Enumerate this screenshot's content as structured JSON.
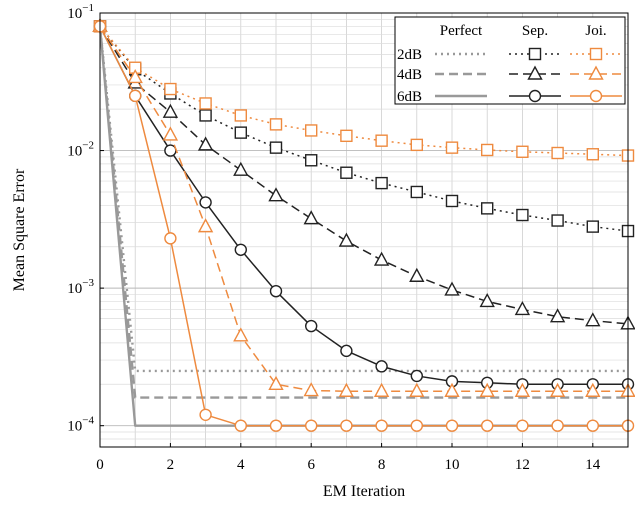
{
  "chart_data": {
    "type": "line",
    "xlabel": "EM Iteration",
    "ylabel": "Mean Square Error",
    "xlim": [
      0,
      15
    ],
    "ylim": [
      7e-05,
      0.1
    ],
    "yscale": "log",
    "xticks": [
      0,
      2,
      4,
      6,
      8,
      10,
      12,
      14
    ],
    "yticks": [
      {
        "value": 0.0001,
        "base": "10",
        "exp": "−4"
      },
      {
        "value": 0.001,
        "base": "10",
        "exp": "−3"
      },
      {
        "value": 0.01,
        "base": "10",
        "exp": "−2"
      },
      {
        "value": 0.1,
        "base": "10",
        "exp": "−1"
      }
    ],
    "grid": true,
    "legend": {
      "placement": "top-right",
      "columns": [
        "Perfect",
        "Sep.",
        "Joi."
      ],
      "rows": [
        "2dB",
        "4dB",
        "6dB"
      ]
    },
    "colors": {
      "perfect": "#999999",
      "separate": "#222222",
      "joint": "#EE8A3F"
    },
    "x": [
      0,
      1,
      2,
      3,
      4,
      5,
      6,
      7,
      8,
      9,
      10,
      11,
      12,
      13,
      14,
      15
    ],
    "series": [
      {
        "group": "Perfect",
        "snr": "2dB",
        "dash": "dotted",
        "marker": "none",
        "values": [
          0.08,
          0.00025,
          0.00025,
          0.00025,
          0.00025,
          0.00025,
          0.00025,
          0.00025,
          0.00025,
          0.00025,
          0.00025,
          0.00025,
          0.00025,
          0.00025,
          0.00025,
          0.00025
        ]
      },
      {
        "group": "Perfect",
        "snr": "4dB",
        "dash": "dashed",
        "marker": "none",
        "values": [
          0.08,
          0.00016,
          0.00016,
          0.00016,
          0.00016,
          0.00016,
          0.00016,
          0.00016,
          0.00016,
          0.00016,
          0.00016,
          0.00016,
          0.00016,
          0.00016,
          0.00016,
          0.00016
        ]
      },
      {
        "group": "Perfect",
        "snr": "6dB",
        "dash": "solid",
        "marker": "none",
        "values": [
          0.08,
          0.0001,
          0.0001,
          0.0001,
          0.0001,
          0.0001,
          0.0001,
          0.0001,
          0.0001,
          0.0001,
          0.0001,
          0.0001,
          0.0001,
          0.0001,
          0.0001,
          0.0001
        ]
      },
      {
        "group": "Sep.",
        "snr": "2dB",
        "dash": "dotted",
        "marker": "square",
        "values": [
          0.08,
          0.039,
          0.026,
          0.018,
          0.0135,
          0.0105,
          0.0085,
          0.0069,
          0.0058,
          0.005,
          0.0043,
          0.0038,
          0.0034,
          0.0031,
          0.0028,
          0.0026
        ]
      },
      {
        "group": "Sep.",
        "snr": "4dB",
        "dash": "dashed",
        "marker": "triangle",
        "values": [
          0.08,
          0.031,
          0.019,
          0.011,
          0.0072,
          0.0047,
          0.0032,
          0.0022,
          0.0016,
          0.00122,
          0.00097,
          0.0008,
          0.0007,
          0.00062,
          0.00058,
          0.00055
        ]
      },
      {
        "group": "Sep.",
        "snr": "6dB",
        "dash": "solid",
        "marker": "circle",
        "values": [
          0.08,
          0.025,
          0.01,
          0.0042,
          0.0019,
          0.00095,
          0.00053,
          0.00035,
          0.00027,
          0.00023,
          0.00021,
          0.000205,
          0.0002,
          0.0002,
          0.0002,
          0.0002
        ]
      },
      {
        "group": "Joi.",
        "snr": "2dB",
        "dash": "dotted",
        "marker": "square",
        "values": [
          0.08,
          0.04,
          0.028,
          0.022,
          0.018,
          0.0155,
          0.014,
          0.0128,
          0.0118,
          0.011,
          0.0105,
          0.0101,
          0.0098,
          0.0096,
          0.0094,
          0.0092
        ]
      },
      {
        "group": "Joi.",
        "snr": "4dB",
        "dash": "dashed",
        "marker": "triangle",
        "values": [
          0.08,
          0.034,
          0.013,
          0.0028,
          0.00045,
          0.0002,
          0.00018,
          0.000178,
          0.000178,
          0.000178,
          0.000178,
          0.000178,
          0.000178,
          0.000178,
          0.000178,
          0.000178
        ]
      },
      {
        "group": "Joi.",
        "snr": "6dB",
        "dash": "solid",
        "marker": "circle",
        "values": [
          0.08,
          0.025,
          0.0023,
          0.00012,
          0.0001,
          0.0001,
          0.0001,
          0.0001,
          0.0001,
          0.0001,
          0.0001,
          0.0001,
          0.0001,
          0.0001,
          0.0001,
          0.0001
        ]
      }
    ]
  }
}
